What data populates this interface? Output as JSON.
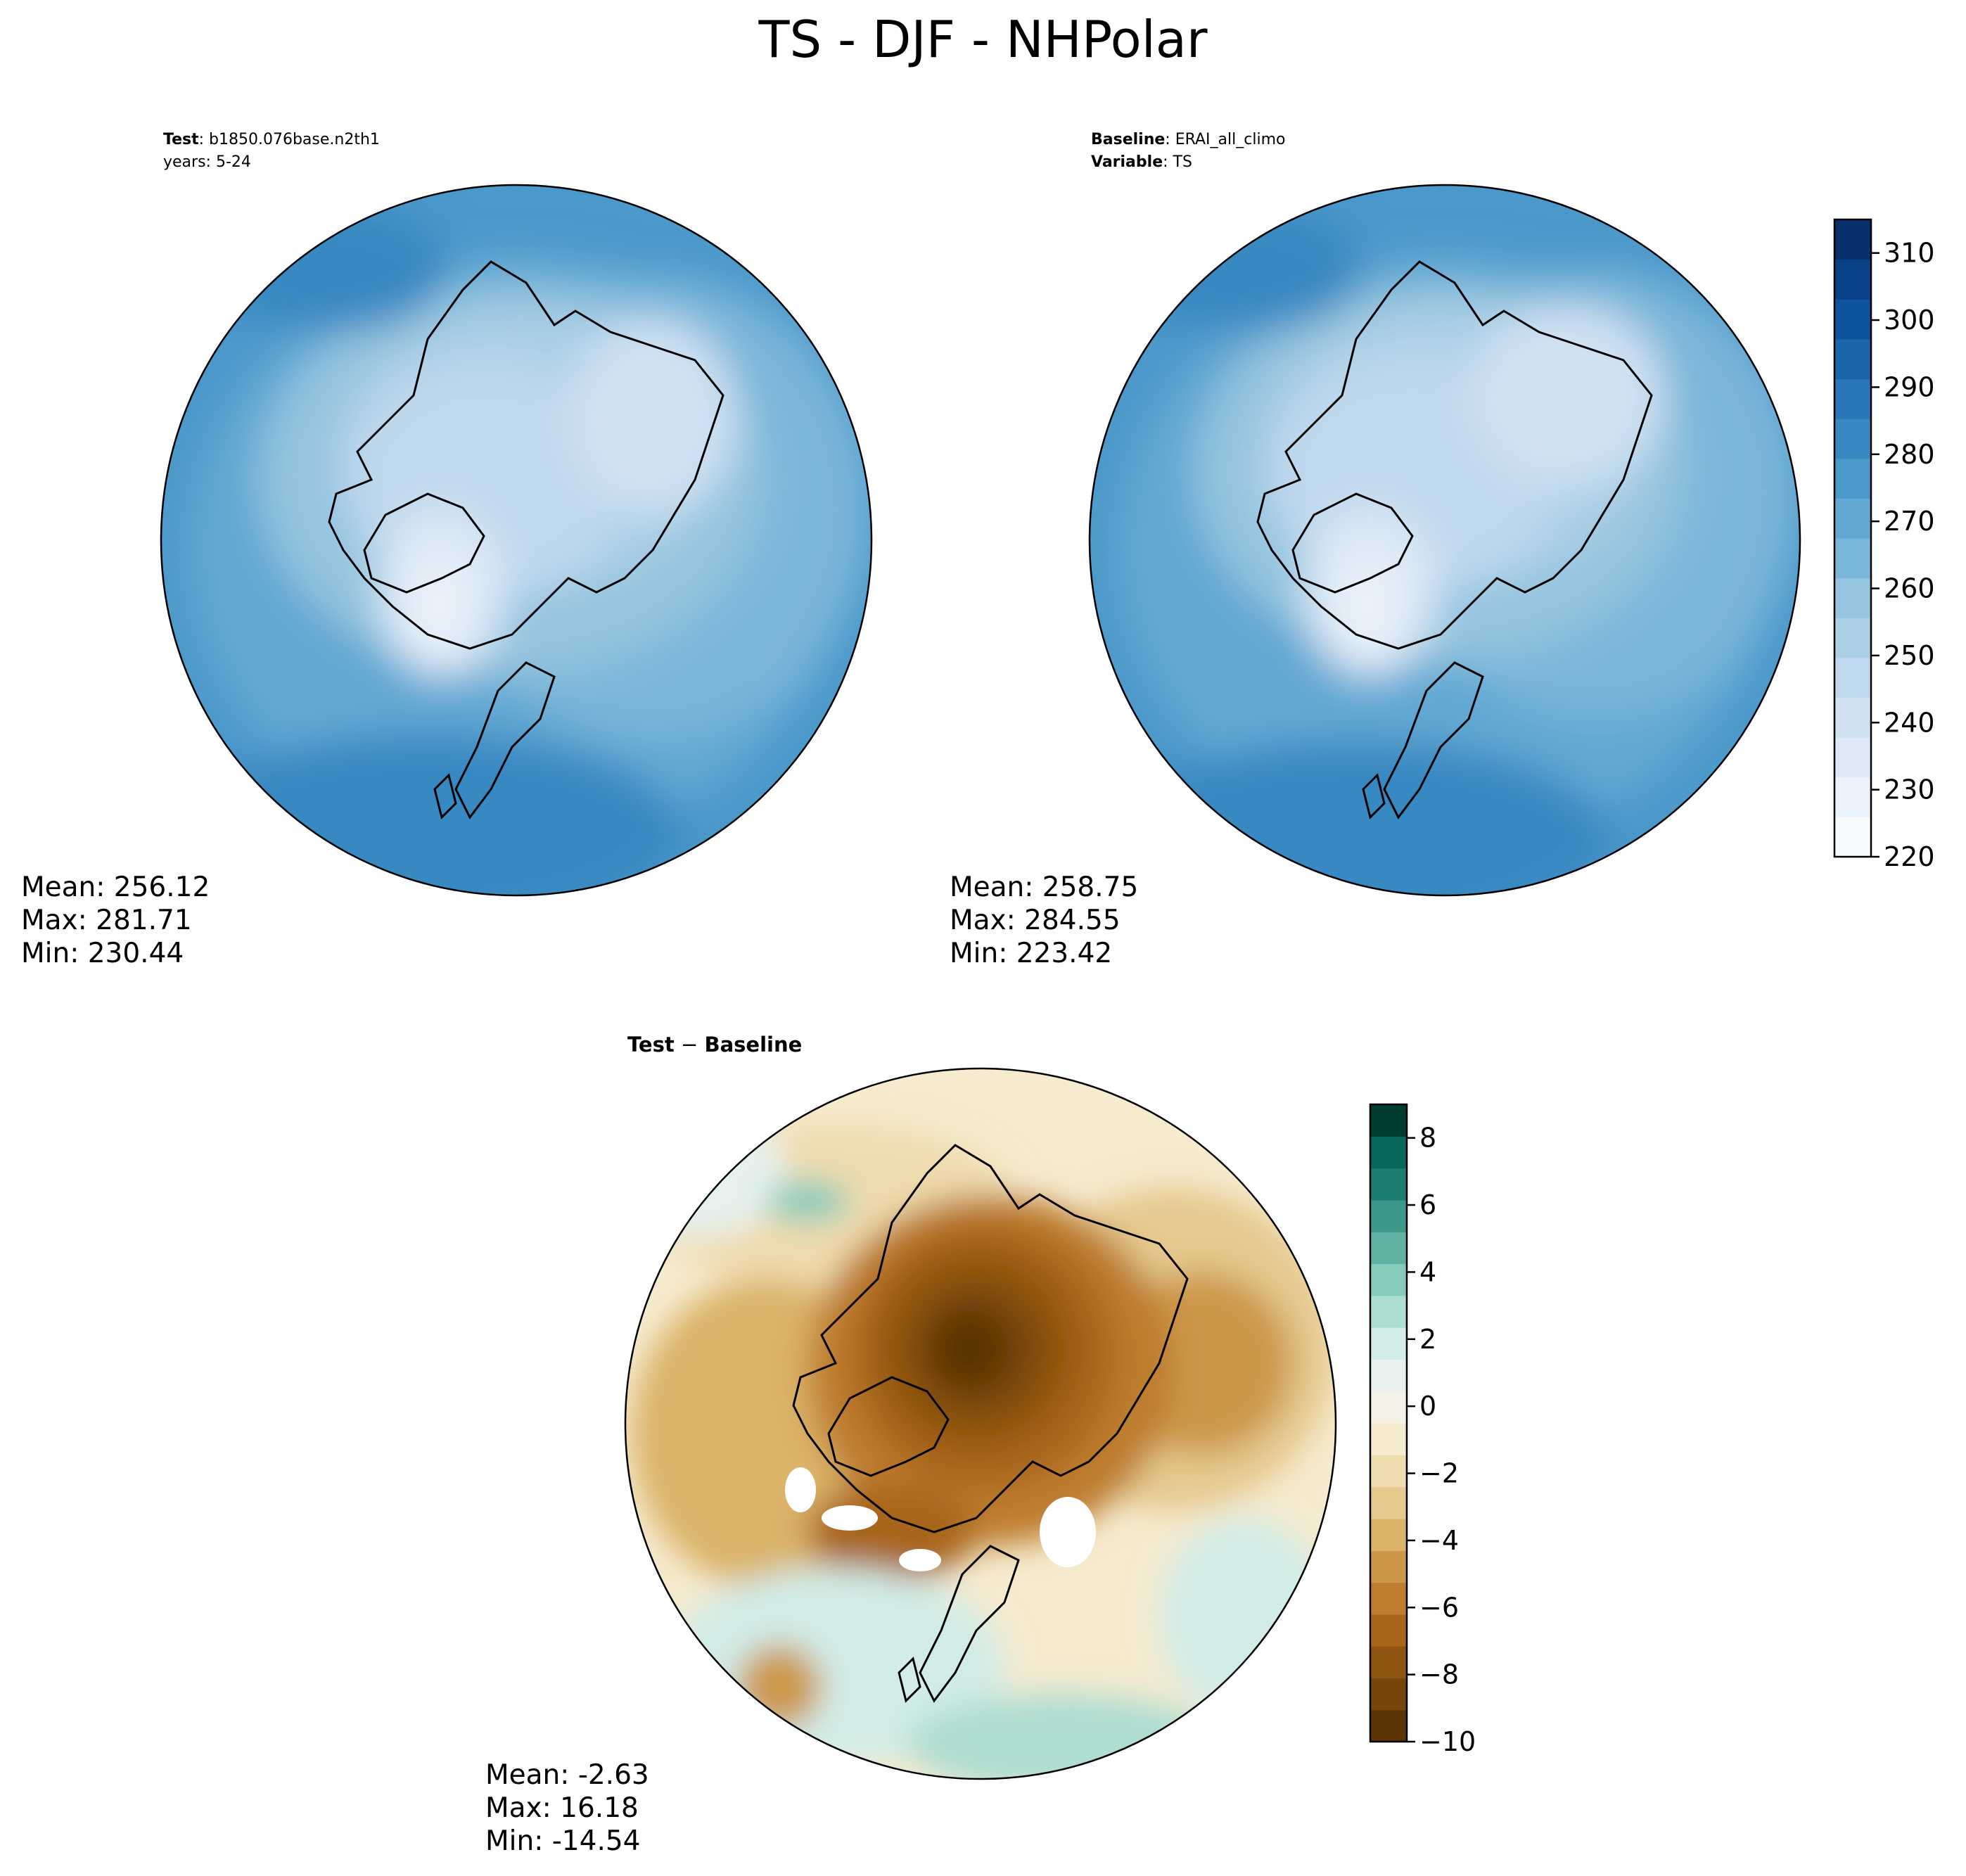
{
  "title": "TS - DJF - NHPolar",
  "panels": {
    "test": {
      "label_key": "Test",
      "label_value": "b1850.076base.n2th1",
      "years": "years: 5-24",
      "mean": "Mean: 256.12",
      "max": "Max: 281.71",
      "min": "Min: 230.44"
    },
    "baseline": {
      "label_key": "Baseline",
      "label_value": "ERAI_all_climo",
      "var_key": "Variable",
      "var_value": "TS",
      "mean": "Mean: 258.75",
      "max": "Max: 284.55",
      "min": "Min: 223.42"
    },
    "diff": {
      "label_a": "Test",
      "sep": " − ",
      "label_b": "Baseline",
      "mean": "Mean: -2.63",
      "max": "Max: 16.18",
      "min": "Min: -14.54"
    }
  },
  "colorbars": {
    "abs": {
      "colormap": "Blues",
      "min": 220,
      "max": 315,
      "tick_labels": [
        "220",
        "230",
        "240",
        "250",
        "260",
        "270",
        "280",
        "290",
        "300",
        "310"
      ],
      "colors": [
        "#f7fbff",
        "#eaf3fb",
        "#dde9f6",
        "#d0e1f2",
        "#c0d8ed",
        "#abcfe5",
        "#94c4df",
        "#7ab6d9",
        "#62a8d3",
        "#4b98ca",
        "#3988c1",
        "#2a77b7",
        "#1b65ab",
        "#0d549f",
        "#0a4287",
        "#08306b"
      ]
    },
    "diff": {
      "colormap": "BrBG",
      "min": -10,
      "max": 9,
      "tick_labels": [
        "−10",
        "−8",
        "−6",
        "−4",
        "−2",
        "0",
        "2",
        "4",
        "6",
        "8"
      ],
      "colors": [
        "#5c3405",
        "#774409",
        "#8f5410",
        "#a8661d",
        "#bd7d2e",
        "#cc9748",
        "#dbb369",
        "#e5c98e",
        "#efdcae",
        "#f6ebcf",
        "#f5f1e5",
        "#e6f1ef",
        "#d2ece7",
        "#aeddd2",
        "#87cbbc",
        "#5fb1a3",
        "#3d978a",
        "#1d7d71",
        "#08675a",
        "#003c30"
      ]
    }
  }
}
